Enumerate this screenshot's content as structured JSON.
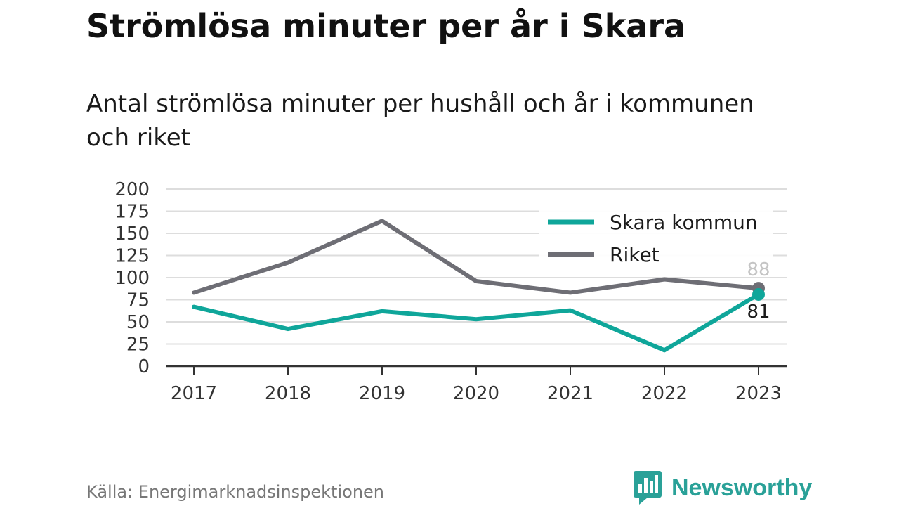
{
  "title": "Strömlösa minuter per år i Skara",
  "subtitle": "Antal strömlösa minuter per hushåll och år i kommunen och riket",
  "source": "Källa: Energimarknadsinspektionen",
  "brand": {
    "name": "Newsworthy",
    "icon": "newsworthy-logo-icon",
    "color": "#2aa198"
  },
  "chart_data": {
    "type": "line",
    "title": "",
    "xlabel": "",
    "ylabel": "",
    "x": [
      "2017",
      "2018",
      "2019",
      "2020",
      "2021",
      "2022",
      "2023"
    ],
    "ylim": [
      0,
      200
    ],
    "yticks": [
      "0",
      "25",
      "50",
      "75",
      "100",
      "125",
      "150",
      "175",
      "200"
    ],
    "grid": true,
    "legend": "top-right",
    "series": [
      {
        "name": "Skara kommun",
        "color": "#0fa69a",
        "values": [
          67,
          42,
          62,
          53,
          63,
          18,
          81
        ],
        "end_label": "81"
      },
      {
        "name": "Riket",
        "color": "#6e6e75",
        "values": [
          83,
          117,
          164,
          96,
          83,
          98,
          88
        ],
        "end_label": "88"
      }
    ]
  }
}
